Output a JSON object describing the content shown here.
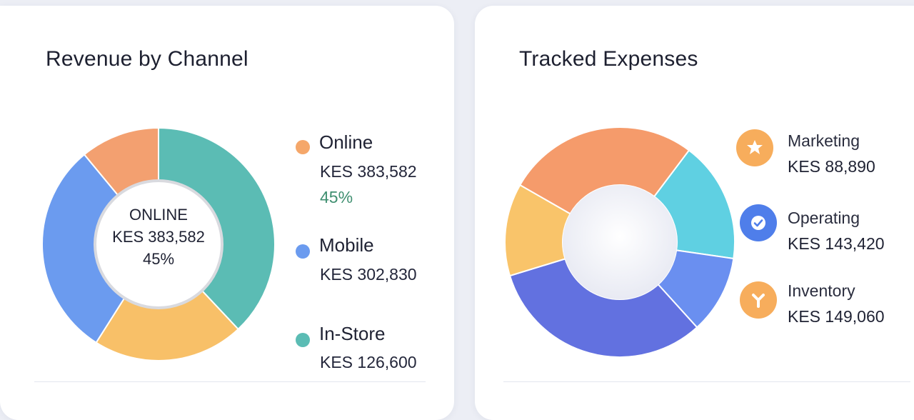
{
  "revenue": {
    "title": "Revenue by Channel",
    "center": {
      "label": "ONLINE",
      "value": "KES 383,582",
      "pct": "45%"
    },
    "legend": [
      {
        "name": "Online",
        "value": "KES 383,582",
        "pct": "45%",
        "color": "#f0a565"
      },
      {
        "name": "Mobile",
        "value": "KES 302,830",
        "color": "#6b9bef"
      },
      {
        "name": "In-Store",
        "value": "KES 126,600",
        "color": "#5bbcb4"
      }
    ]
  },
  "expenses": {
    "title": "Tracked Expenses",
    "legend": [
      {
        "name": "Marketing",
        "value": "KES 88,890",
        "icon": "star-person-icon",
        "color": "#f6ad5c"
      },
      {
        "name": "Operating",
        "value": "KES 143,420",
        "icon": "check-icon",
        "color": "#4f7eea"
      },
      {
        "name": "Inventory",
        "value": "KES 149,060",
        "icon": "y-shape-icon",
        "color": "#f6ad5c"
      }
    ]
  },
  "chart_data": [
    {
      "type": "pie",
      "title": "Revenue by Channel",
      "categories": [
        "In-Store (teal)",
        "Yellow",
        "Mobile",
        "Orange"
      ],
      "values": [
        38,
        21,
        30,
        11
      ],
      "colors": [
        "#5bbcb4",
        "#f8c068",
        "#6b9bef",
        "#f3a070"
      ]
    },
    {
      "type": "pie",
      "title": "Tracked Expenses",
      "categories": [
        "Cyan",
        "Blue",
        "Indigo",
        "Yellow",
        "Orange"
      ],
      "values": [
        17,
        11,
        32,
        13,
        27
      ],
      "colors": [
        "#5fd0e2",
        "#6a8ff0",
        "#6271e0",
        "#f9c46a",
        "#f59b6b"
      ]
    }
  ]
}
